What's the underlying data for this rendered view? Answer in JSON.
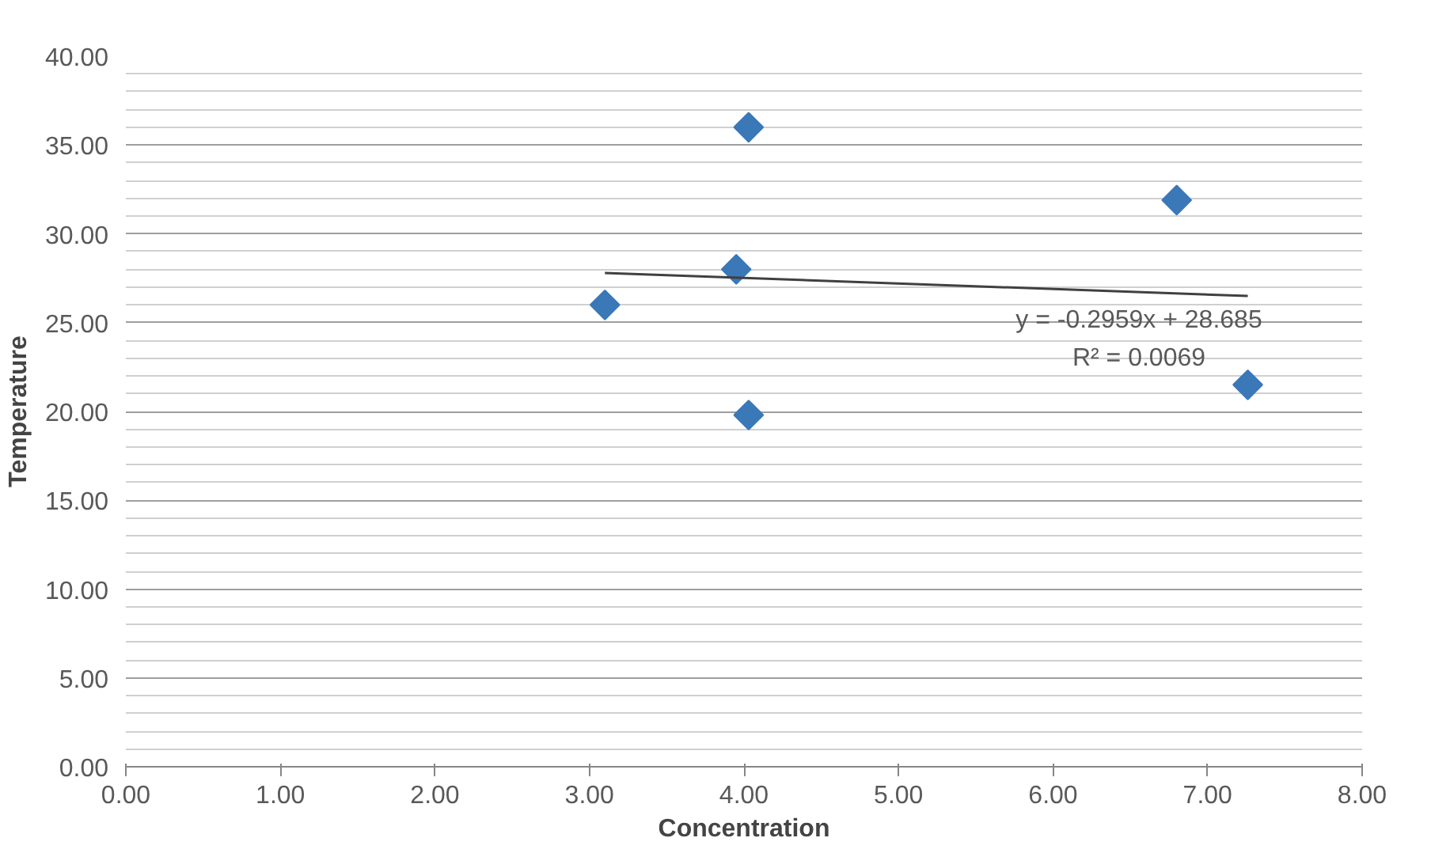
{
  "chart_data": {
    "type": "scatter",
    "xlabel": "Concentration",
    "ylabel": "Temperature",
    "xlim": [
      0,
      8
    ],
    "ylim": [
      0,
      40
    ],
    "xticks": [
      {
        "value": 0,
        "label": "0.00"
      },
      {
        "value": 1,
        "label": "1.00"
      },
      {
        "value": 2,
        "label": "2.00"
      },
      {
        "value": 3,
        "label": "3.00"
      },
      {
        "value": 4,
        "label": "4.00"
      },
      {
        "value": 5,
        "label": "5.00"
      },
      {
        "value": 6,
        "label": "6.00"
      },
      {
        "value": 7,
        "label": "7.00"
      },
      {
        "value": 8,
        "label": "8.00"
      }
    ],
    "yticks": [
      {
        "value": 0,
        "label": "0.00"
      },
      {
        "value": 5,
        "label": "5.00"
      },
      {
        "value": 10,
        "label": "10.00"
      },
      {
        "value": 15,
        "label": "15.00"
      },
      {
        "value": 20,
        "label": "20.00"
      },
      {
        "value": 25,
        "label": "25.00"
      },
      {
        "value": 30,
        "label": "30.00"
      },
      {
        "value": 35,
        "label": "35.00"
      },
      {
        "value": 40,
        "label": "40.00"
      }
    ],
    "grid": "y",
    "series": [
      {
        "color": "#3a78b8",
        "marker": "diamond",
        "x": [
          3.1,
          3.95,
          4.03,
          4.03,
          6.8,
          7.26
        ],
        "values": [
          26,
          28,
          36,
          19.8,
          31.9,
          21.5
        ]
      },
      {
        "type": "line",
        "color": "#404040",
        "x": [
          3.1,
          7.26
        ],
        "values": [
          27.8,
          26.5
        ]
      }
    ],
    "annotations": [
      "y = -0.2959x + 28.685",
      "R² = 0.0069"
    ]
  }
}
